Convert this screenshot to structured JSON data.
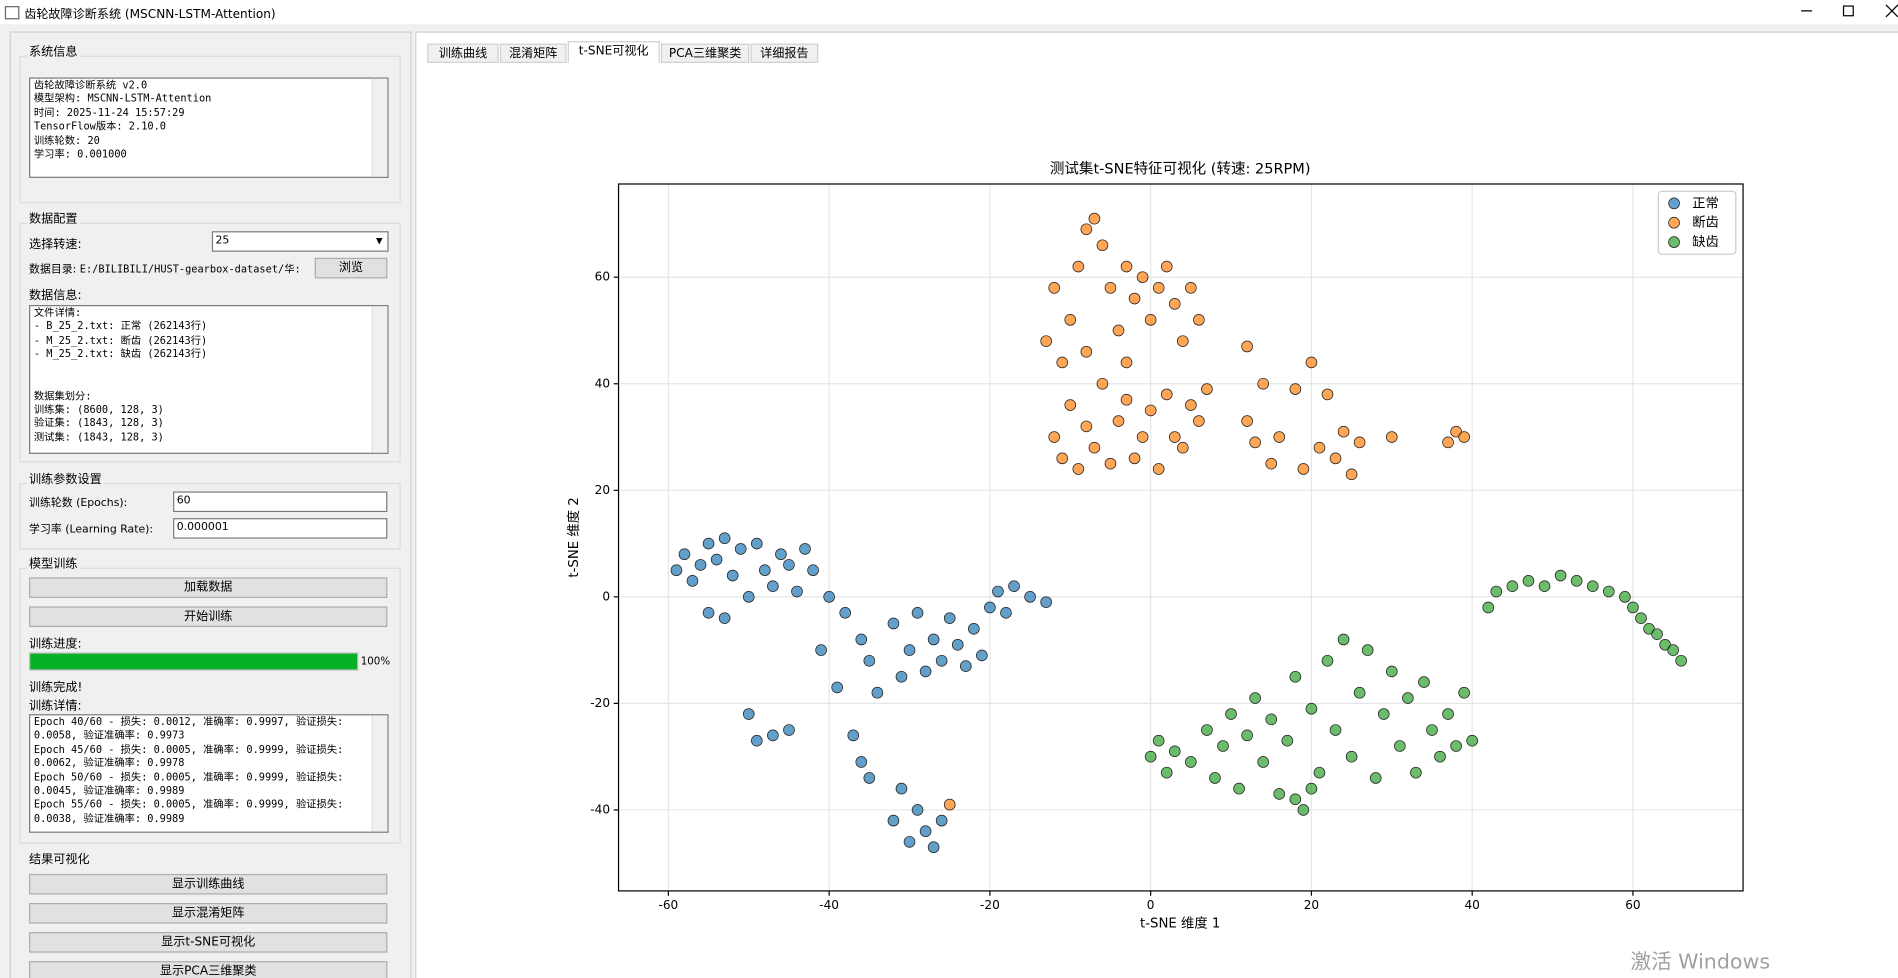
{
  "window": {
    "title": "齿轮故障诊断系统 (MSCNN-LSTM-Attention)"
  },
  "system_info": {
    "title": "系统信息",
    "lines": [
      "齿轮故障诊断系统 v2.0",
      "模型架构: MSCNN-LSTM-Attention",
      "时间: 2025-11-24 15:57:29",
      "TensorFlow版本: 2.10.0",
      "训练轮数: 20",
      "学习率: 0.001000"
    ]
  },
  "data_config": {
    "title": "数据配置",
    "speed_label": "选择转速:",
    "speed_value": "25",
    "dir_label": "数据目录:",
    "dir_value": "E:/BILIBILI/HUST-gearbox-dataset/华:",
    "browse": "浏览",
    "info_label": "数据信息:",
    "file_lines": [
      "文件详情:",
      "- B_25_2.txt: 正常 (262143行)",
      "- M_25_2.txt: 断齿 (262143行)",
      "- M_25_2.txt: 缺齿 (262143行)"
    ],
    "split_lines": [
      "数据集划分:",
      "训练集: (8600, 128, 3)",
      "验证集: (1843, 128, 3)",
      "测试集: (1843, 128, 3)"
    ]
  },
  "train_params": {
    "title": "训练参数设置",
    "epochs_label": "训练轮数 (Epochs):",
    "epochs_value": "60",
    "lr_label": "学习率 (Learning Rate):",
    "lr_value": "0.000001"
  },
  "training": {
    "title": "模型训练",
    "buttons": [
      "加载数据",
      "开始训练"
    ],
    "progress_label": "训练进度:",
    "progress": {
      "value": 100,
      "label": "100%"
    },
    "status": "训练完成!",
    "detail_label": "训练详情:",
    "log_lines": [
      "Epoch 40/60 - 损失: 0.0012, 准确率: 0.9997, 验证损失:",
      "0.0058, 验证准确率: 0.9973",
      "Epoch 45/60 - 损失: 0.0005, 准确率: 0.9999, 验证损失:",
      "0.0062, 验证准确率: 0.9978",
      "Epoch 50/60 - 损失: 0.0005, 准确率: 0.9999, 验证损失:",
      "0.0045, 验证准确率: 0.9989",
      "Epoch 55/60 - 损失: 0.0005, 准确率: 0.9999, 验证损失:",
      "0.0038, 验证准确率: 0.9989"
    ]
  },
  "visualization": {
    "title": "结果可视化",
    "buttons": [
      "显示训练曲线",
      "显示混淆矩阵",
      "显示t-SNE可视化",
      "显示PCA三维聚类"
    ]
  },
  "tabs": {
    "items": [
      "训练曲线",
      "混淆矩阵",
      "t-SNE可视化",
      "PCA三维聚类",
      "详细报告"
    ],
    "active": 2
  },
  "watermark": "激活 Windows",
  "chart_data": {
    "type": "scatter",
    "title": "测试集t-SNE特征可视化 (转速: 25RPM)",
    "xlabel": "t-SNE 维度 1",
    "ylabel": "t-SNE 维度 2",
    "xlim": [
      -66.2,
      73.7
    ],
    "ylim": [
      -55.2,
      77.5
    ],
    "xticks": [
      -60,
      -40,
      -20,
      0,
      20,
      40,
      60
    ],
    "yticks": [
      -40,
      -20,
      0,
      20,
      40,
      60
    ],
    "grid": true,
    "legend": "upper right",
    "series": [
      {
        "name": "正常",
        "color": "#1f77b4",
        "x": [
          -59,
          -58,
          -57,
          -56,
          -55,
          -54,
          -53,
          -52,
          -51,
          -50,
          -49,
          -48,
          -47,
          -46,
          -45,
          -44,
          -43,
          -42,
          -40,
          -38,
          -36,
          -35,
          -34,
          -32,
          -31,
          -30,
          -29,
          -28,
          -27,
          -26,
          -25,
          -24,
          -23,
          -22,
          -21,
          -20,
          -19,
          -18,
          -17,
          -15,
          -13,
          -50,
          -49,
          -47,
          -45,
          -37,
          -36,
          -35,
          -31,
          -29,
          -28,
          -27,
          -26,
          -32,
          -30,
          -39,
          -41,
          -55,
          -53
        ],
        "y": [
          5,
          8,
          3,
          6,
          10,
          7,
          11,
          4,
          9,
          0,
          10,
          5,
          2,
          8,
          6,
          1,
          9,
          5,
          0,
          -3,
          -8,
          -12,
          -18,
          -5,
          -15,
          -10,
          -3,
          -14,
          -8,
          -12,
          -4,
          -9,
          -13,
          -6,
          -11,
          -2,
          1,
          -3,
          2,
          0,
          -1,
          -22,
          -27,
          -26,
          -25,
          -26,
          -31,
          -34,
          -36,
          -40,
          -44,
          -47,
          -42,
          -42,
          -46,
          -17,
          -10,
          -3,
          -4
        ]
      },
      {
        "name": "断齿",
        "color": "#ff7f0e",
        "x": [
          -13,
          -12,
          -11,
          -10,
          -9,
          -8,
          -7,
          -6,
          -5,
          -4,
          -3,
          -2,
          -1,
          0,
          1,
          2,
          3,
          4,
          5,
          6,
          -12,
          -11,
          -10,
          -9,
          -8,
          -7,
          -6,
          -5,
          -4,
          -3,
          -2,
          -1,
          0,
          1,
          2,
          3,
          4,
          5,
          6,
          7,
          12,
          13,
          14,
          15,
          16,
          18,
          19,
          20,
          21,
          22,
          23,
          24,
          25,
          26,
          30,
          37,
          38,
          39,
          12,
          -25,
          -8,
          -3
        ],
        "y": [
          48,
          58,
          44,
          52,
          62,
          69,
          71,
          66,
          58,
          50,
          62,
          56,
          60,
          52,
          58,
          62,
          55,
          48,
          58,
          52,
          30,
          26,
          36,
          24,
          32,
          28,
          40,
          25,
          33,
          37,
          26,
          30,
          35,
          24,
          38,
          30,
          28,
          36,
          33,
          39,
          33,
          29,
          40,
          25,
          30,
          39,
          24,
          44,
          28,
          38,
          26,
          31,
          23,
          29,
          30,
          29,
          31,
          30,
          47,
          -39,
          46,
          44
        ]
      },
      {
        "name": "缺齿",
        "color": "#2ca02c",
        "x": [
          42,
          43,
          45,
          47,
          49,
          51,
          53,
          55,
          57,
          59,
          60,
          61,
          62,
          63,
          64,
          65,
          66,
          0,
          1,
          2,
          3,
          5,
          7,
          8,
          9,
          10,
          11,
          12,
          13,
          14,
          15,
          16,
          17,
          18,
          19,
          20,
          21,
          22,
          23,
          24,
          25,
          26,
          27,
          28,
          29,
          30,
          31,
          32,
          33,
          34,
          35,
          36,
          37,
          38,
          39,
          40,
          18,
          20
        ],
        "y": [
          -2,
          1,
          2,
          3,
          2,
          4,
          3,
          2,
          1,
          0,
          -2,
          -4,
          -6,
          -7,
          -9,
          -10,
          -12,
          -30,
          -27,
          -33,
          -29,
          -31,
          -25,
          -34,
          -28,
          -22,
          -36,
          -26,
          -19,
          -31,
          -23,
          -37,
          -27,
          -15,
          -40,
          -21,
          -33,
          -12,
          -25,
          -8,
          -30,
          -18,
          -10,
          -34,
          -22,
          -14,
          -28,
          -19,
          -33,
          -16,
          -25,
          -30,
          -22,
          -28,
          -18,
          -27,
          -38,
          -36
        ]
      }
    ]
  }
}
